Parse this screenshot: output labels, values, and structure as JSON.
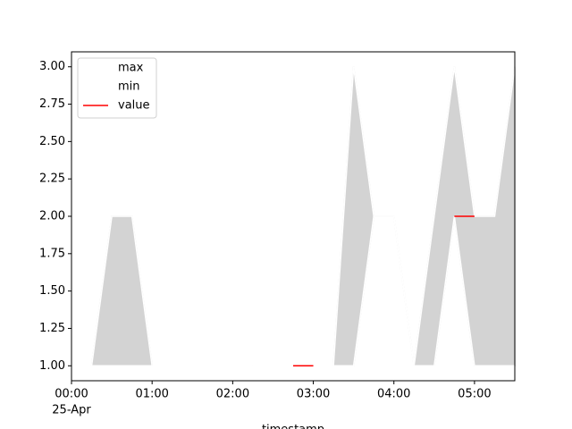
{
  "chart_data": {
    "type": "line",
    "x_label": "timestamp",
    "x_date_label": "25-Apr",
    "x": [
      "00:00",
      "00:15",
      "00:30",
      "00:45",
      "01:00",
      "01:15",
      "01:30",
      "01:45",
      "02:00",
      "02:15",
      "02:30",
      "02:45",
      "03:00",
      "03:15",
      "03:30",
      "03:45",
      "04:00",
      "04:15",
      "04:30",
      "04:45",
      "05:00",
      "05:15",
      "05:30"
    ],
    "series": [
      {
        "name": "max",
        "color": "#ffffff",
        "values": [
          1,
          1,
          2,
          2,
          1,
          1,
          1,
          1,
          1,
          1,
          null,
          null,
          1,
          1,
          3,
          2,
          2,
          1,
          2,
          3,
          2,
          2,
          3
        ]
      },
      {
        "name": "min",
        "color": "#ffffff",
        "values": [
          1,
          1,
          1,
          1,
          1,
          1,
          1,
          1,
          1,
          1,
          null,
          null,
          1,
          1,
          1,
          2,
          2,
          1,
          1,
          2,
          1,
          1,
          1
        ]
      },
      {
        "name": "value",
        "color": "#ff0000",
        "values": [
          null,
          null,
          null,
          null,
          null,
          null,
          null,
          null,
          null,
          null,
          null,
          1,
          1,
          null,
          null,
          null,
          null,
          null,
          null,
          2,
          2,
          null,
          null
        ]
      }
    ],
    "fill_color": "#d3d3d3",
    "xlim": [
      "00:00",
      "05:30"
    ],
    "xticks": [
      "00:00",
      "01:00",
      "02:00",
      "03:00",
      "04:00",
      "05:00"
    ],
    "ylim": [
      0.9,
      3.1
    ],
    "yticks": [
      {
        "value": 1,
        "label": "1.00"
      },
      {
        "value": 1.25,
        "label": "1.25"
      },
      {
        "value": 1.5,
        "label": "1.50"
      },
      {
        "value": 1.75,
        "label": "1.75"
      },
      {
        "value": 2,
        "label": "2.00"
      },
      {
        "value": 2.25,
        "label": "2.25"
      },
      {
        "value": 2.5,
        "label": "2.50"
      },
      {
        "value": 2.75,
        "label": "2.75"
      },
      {
        "value": 3,
        "label": "3.00"
      }
    ],
    "legend": "upper left"
  }
}
